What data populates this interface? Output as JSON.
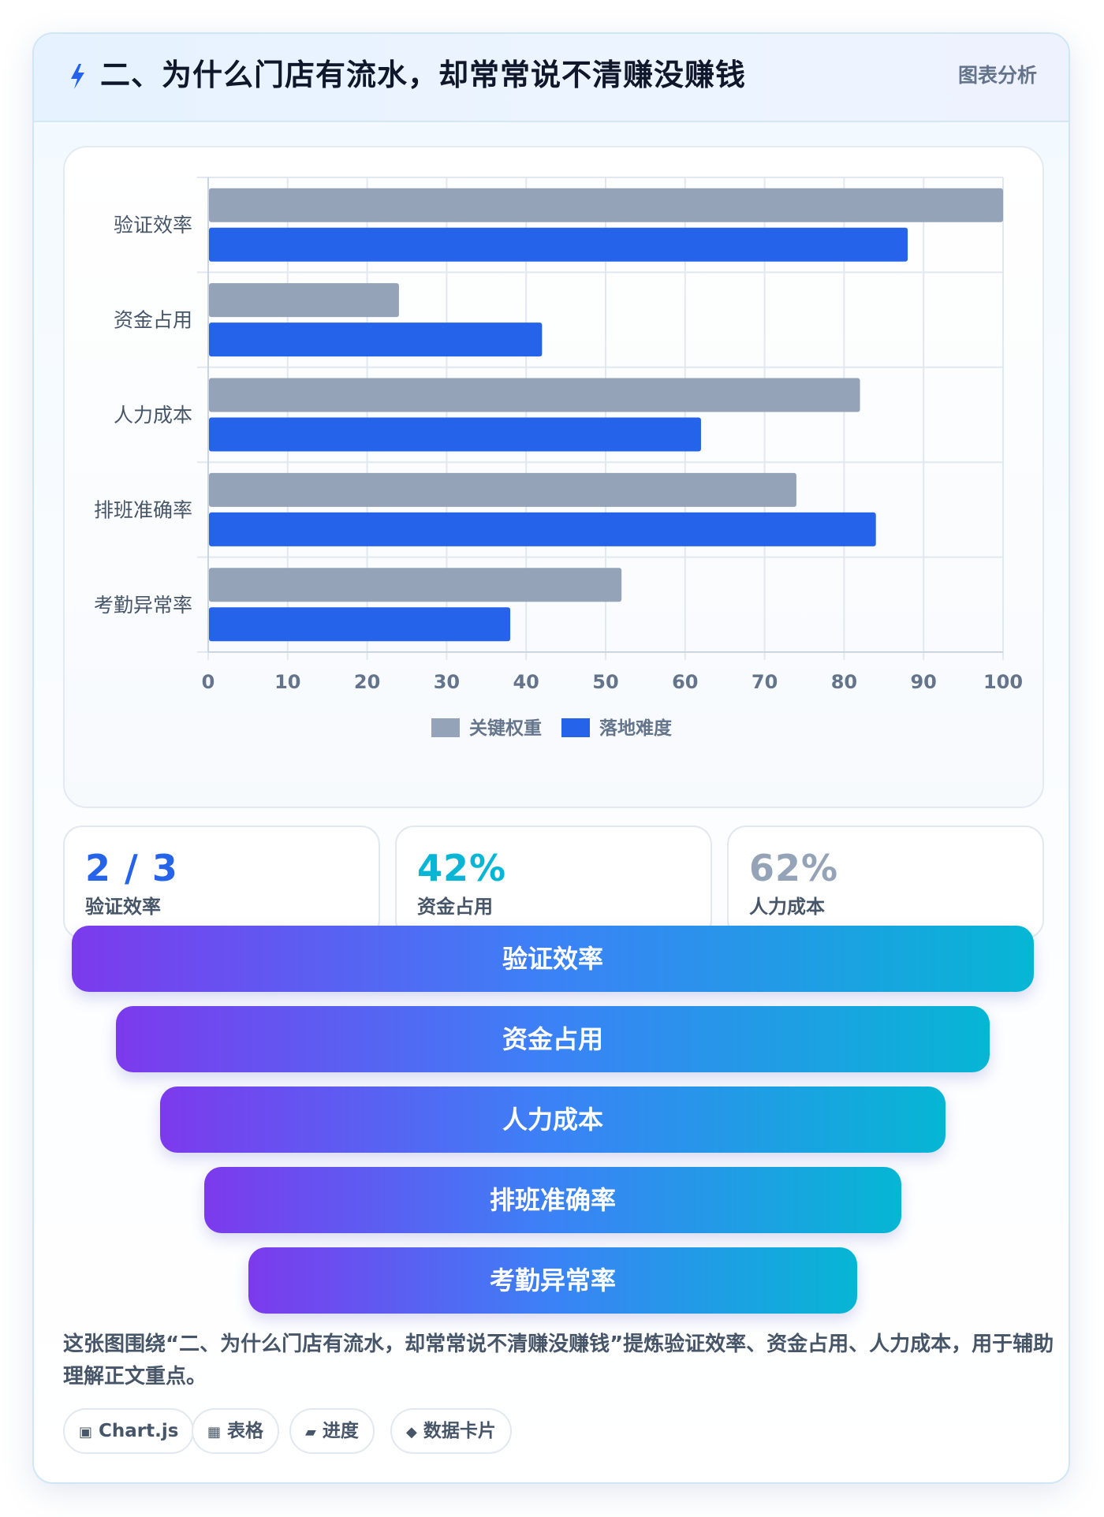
{
  "header": {
    "title": "二、为什么门店有流水，却常常说不清赚没赚钱",
    "tag": "图表分析",
    "icon": "bolt-icon"
  },
  "chart_data": {
    "type": "bar",
    "orientation": "horizontal",
    "categories": [
      "验证效率",
      "资金占用",
      "人力成本",
      "排班准确率",
      "考勤异常率"
    ],
    "series": [
      {
        "name": "关键权重",
        "values": [
          100,
          24,
          82,
          74,
          52
        ],
        "color": "#94a3b8"
      },
      {
        "name": "落地难度",
        "values": [
          88,
          42,
          62,
          84,
          38
        ],
        "color": "#2563eb"
      }
    ],
    "xlim": [
      0,
      100
    ],
    "xticks": [
      "0",
      "10",
      "20",
      "30",
      "40",
      "50",
      "60",
      "70",
      "80",
      "90",
      "100"
    ],
    "grid": true,
    "legend_position": "bottom"
  },
  "stats": [
    {
      "value": "2 / 3",
      "label": "验证效率",
      "color": "#2563eb"
    },
    {
      "value": "42%",
      "label": "资金占用",
      "color": "#06b6d4"
    },
    {
      "value": "62%",
      "label": "人力成本",
      "color": "#94a3b8"
    }
  ],
  "funnel": [
    "验证效率",
    "资金占用",
    "人力成本",
    "排班准确率",
    "考勤异常率"
  ],
  "summary": "这张图围绕“二、为什么门店有流水，却常常说不清赚没赚钱”提炼验证效率、资金占用、人力成本，用于辅助理解正文重点。",
  "chips": [
    {
      "icon": "▣",
      "icon_name": "chart-icon",
      "label": "Chart.js"
    },
    {
      "icon": "▦",
      "icon_name": "table-icon",
      "label": "表格"
    },
    {
      "icon": "▰",
      "icon_name": "progress-icon",
      "label": "进度"
    },
    {
      "icon": "◆",
      "icon_name": "diamond-icon",
      "label": "数据卡片"
    }
  ]
}
